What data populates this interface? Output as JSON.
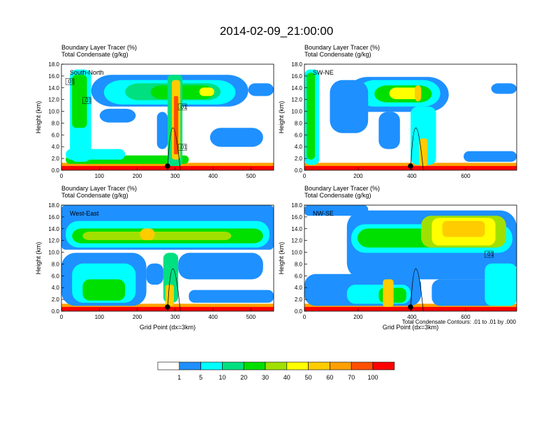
{
  "title": "2014-02-09_21:00:00",
  "colors": {
    "levels": [
      "#ffffff",
      "#1e90ff",
      "#00ffff",
      "#00e080",
      "#00e000",
      "#a0e000",
      "#ffff00",
      "#ffcc00",
      "#ffa000",
      "#ff5000",
      "#ff0000"
    ]
  },
  "chart_data": [
    {
      "type": "heatmap",
      "header": [
        "Boundary Layer Tracer   (%)",
        "Total Condensate   (g/kg)"
      ],
      "label": "South-North",
      "ylabel": "Height (km)",
      "xlabel": "",
      "xlim": [
        0,
        560
      ],
      "ylim": [
        0,
        18
      ],
      "xticks": [
        "0",
        "100",
        "200",
        "300",
        "400",
        "500"
      ],
      "yticks": [
        "0.0",
        "2.0",
        "4.0",
        "6.0",
        "8.0",
        "10.0",
        "12.0",
        "14.0",
        "16.0",
        "18.0"
      ],
      "contour_labels": [
        ".01",
        ".01",
        ".01",
        ".01"
      ],
      "marker_x": 280
    },
    {
      "type": "heatmap",
      "header": [
        "Boundary Layer Tracer   (%)",
        "Total Condensate   (g/kg)"
      ],
      "label": "SW-NE",
      "ylabel": "Height (km)",
      "xlabel": "",
      "xlim": [
        0,
        790
      ],
      "ylim": [
        0,
        18
      ],
      "xticks": [
        "0",
        "200",
        "400",
        "600"
      ],
      "yticks": [
        "0.0",
        "2.0",
        "4.0",
        "6.0",
        "8.0",
        "10.0",
        "12.0",
        "14.0",
        "16.0",
        "18.0"
      ],
      "contour_labels": [],
      "marker_x": 395
    },
    {
      "type": "heatmap",
      "header": [
        "Boundary Layer Tracer   (%)",
        "Total Condensate   (g/kg)"
      ],
      "label": "West-East",
      "ylabel": "Height (km)",
      "xlabel": "Grid Point (dx=3km)",
      "xlim": [
        0,
        560
      ],
      "ylim": [
        0,
        18
      ],
      "xticks": [
        "0",
        "100",
        "200",
        "300",
        "400",
        "500"
      ],
      "yticks": [
        "0.0",
        "2.0",
        "4.0",
        "6.0",
        "8.0",
        "10.0",
        "12.0",
        "14.0",
        "16.0",
        "18.0"
      ],
      "contour_labels": [],
      "marker_x": 280
    },
    {
      "type": "heatmap",
      "header": [
        "Boundary Layer Tracer   (%)",
        "Total Condensate   (g/kg)"
      ],
      "label": "NW-SE",
      "ylabel": "Height (km)",
      "xlabel": "Grid Point (dx=3km)",
      "xlim": [
        0,
        790
      ],
      "ylim": [
        0,
        18
      ],
      "xticks": [
        "0",
        "200",
        "400",
        "600"
      ],
      "yticks": [
        "0.0",
        "2.0",
        "4.0",
        "6.0",
        "8.0",
        "10.0",
        "12.0",
        "14.0",
        "16.0",
        "18.0"
      ],
      "contour_labels": [
        ".01"
      ],
      "marker_x": 395
    }
  ],
  "contour_note": "Total Condensate Contours: .01 to .01 by .000",
  "colorbar": {
    "labels": [
      "1",
      "5",
      "10",
      "20",
      "30",
      "40",
      "50",
      "60",
      "70",
      "100"
    ]
  }
}
